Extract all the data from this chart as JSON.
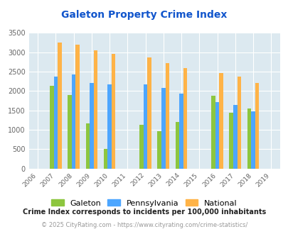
{
  "title": "Galeton Property Crime Index",
  "years": [
    2006,
    2007,
    2008,
    2009,
    2010,
    2011,
    2012,
    2013,
    2014,
    2015,
    2016,
    2017,
    2018,
    2019
  ],
  "data_years": [
    2007,
    2008,
    2009,
    2010,
    2012,
    2013,
    2014,
    2016,
    2017,
    2018
  ],
  "galeton": [
    2130,
    1900,
    1170,
    500,
    1130,
    960,
    1200,
    1875,
    1440,
    1545
  ],
  "pennsylvania": [
    2370,
    2430,
    2210,
    2175,
    2165,
    2075,
    1940,
    1710,
    1635,
    1480
  ],
  "national": [
    3250,
    3200,
    3040,
    2950,
    2860,
    2720,
    2590,
    2470,
    2365,
    2205
  ],
  "galeton_color": "#8dc63f",
  "pennsylvania_color": "#4da6ff",
  "national_color": "#ffb347",
  "bg_color": "#dce9f0",
  "ylim": [
    0,
    3500
  ],
  "yticks": [
    0,
    500,
    1000,
    1500,
    2000,
    2500,
    3000,
    3500
  ],
  "legend_labels": [
    "Galeton",
    "Pennsylvania",
    "National"
  ],
  "footnote1": "Crime Index corresponds to incidents per 100,000 inhabitants",
  "footnote2": "© 2025 CityRating.com - https://www.cityrating.com/crime-statistics/",
  "title_color": "#1155cc",
  "footnote1_color": "#222222",
  "footnote2_color": "#999999"
}
